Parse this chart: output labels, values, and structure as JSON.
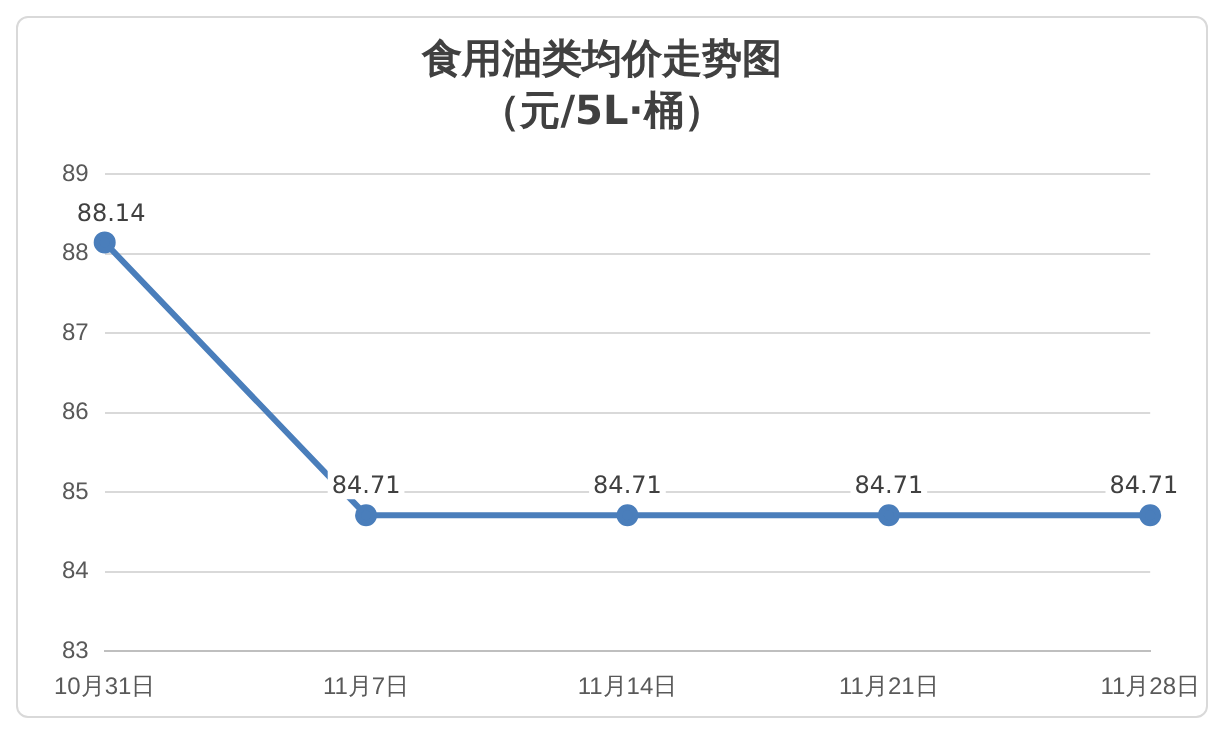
{
  "chart_data": {
    "type": "line",
    "title": "食用油类均价走势图",
    "subtitle": "（元/5L·桶）",
    "categories": [
      "10月31日",
      "11月7日",
      "11月14日",
      "11月21日",
      "11月28日"
    ],
    "series": [
      {
        "color": "#4a7ebb",
        "values": [
          88.14,
          84.71,
          84.71,
          84.71,
          84.71
        ]
      }
    ],
    "ylim": [
      83,
      89
    ],
    "yticks": [
      83,
      84,
      85,
      86,
      87,
      88,
      89
    ],
    "grid": "y",
    "marker": "circle",
    "line_style": "solid",
    "legend": false,
    "data_labels": true
  }
}
